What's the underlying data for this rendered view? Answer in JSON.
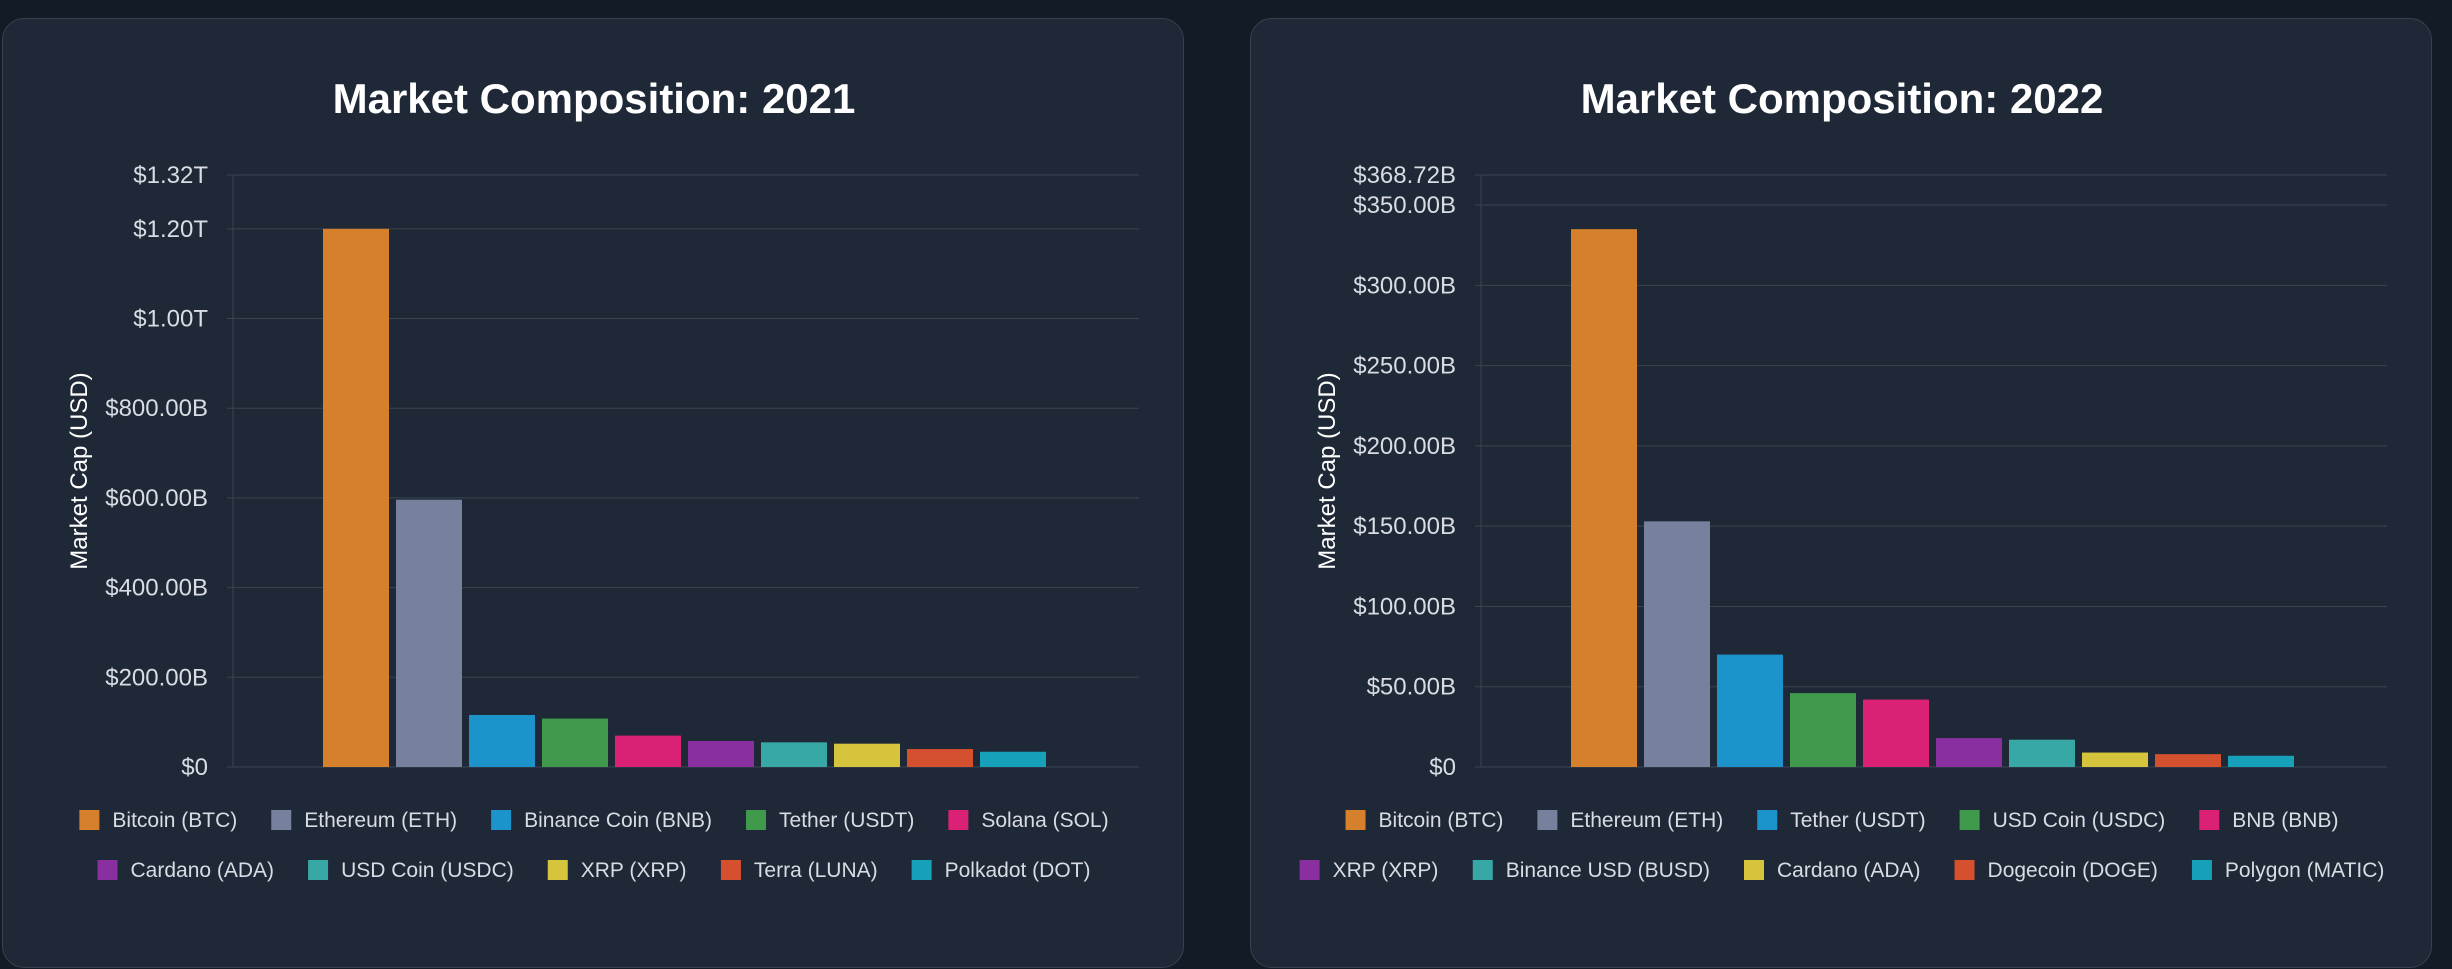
{
  "chart_data": [
    {
      "type": "bar",
      "title": "Market Composition: 2021",
      "ylabel": "Market Cap (USD)",
      "ylim": [
        0,
        1320
      ],
      "value_unit": "billions USD",
      "yticks": [
        0,
        200,
        400,
        600,
        800,
        1000,
        1200,
        1320
      ],
      "ytick_labels": [
        "$0",
        "$200.00B",
        "$400.00B",
        "$600.00B",
        "$800.00B",
        "$1.00T",
        "$1.20T",
        "$1.32T"
      ],
      "grid": true,
      "legend_position": "bottom",
      "categories": [
        "Bitcoin (BTC)",
        "Ethereum (ETH)",
        "Binance Coin (BNB)",
        "Tether (USDT)",
        "Solana (SOL)",
        "Cardano (ADA)",
        "USD Coin (USDC)",
        "XRP (XRP)",
        "Terra (LUNA)",
        "Polkadot (DOT)"
      ],
      "values": [
        1200,
        596,
        116,
        108,
        70,
        58,
        55,
        52,
        40,
        34
      ],
      "colors": [
        "#d5812c",
        "#77819d",
        "#1c94cb",
        "#3f9a4b",
        "#db2176",
        "#892fa0",
        "#38a8a6",
        "#d6c53c",
        "#d5502e",
        "#17a0ba"
      ]
    },
    {
      "type": "bar",
      "title": "Market Composition: 2022",
      "ylabel": "Market Cap (USD)",
      "ylim": [
        0,
        368.72
      ],
      "value_unit": "billions USD",
      "yticks": [
        0,
        50,
        100,
        150,
        200,
        250,
        300,
        350,
        368.72
      ],
      "ytick_labels": [
        "$0",
        "$50.00B",
        "$100.00B",
        "$150.00B",
        "$200.00B",
        "$250.00B",
        "$300.00B",
        "$350.00B",
        "$368.72B"
      ],
      "grid": true,
      "legend_position": "bottom",
      "categories": [
        "Bitcoin (BTC)",
        "Ethereum (ETH)",
        "Tether (USDT)",
        "USD Coin (USDC)",
        "BNB (BNB)",
        "XRP (XRP)",
        "Binance USD (BUSD)",
        "Cardano (ADA)",
        "Dogecoin (DOGE)",
        "Polygon (MATIC)"
      ],
      "values": [
        335,
        153,
        70,
        46,
        42,
        18,
        17,
        9,
        8,
        7
      ],
      "colors": [
        "#d5812c",
        "#77819d",
        "#1c94cb",
        "#3f9a4b",
        "#db2176",
        "#892fa0",
        "#38a8a6",
        "#d6c53c",
        "#d5502e",
        "#17a0ba"
      ]
    }
  ]
}
